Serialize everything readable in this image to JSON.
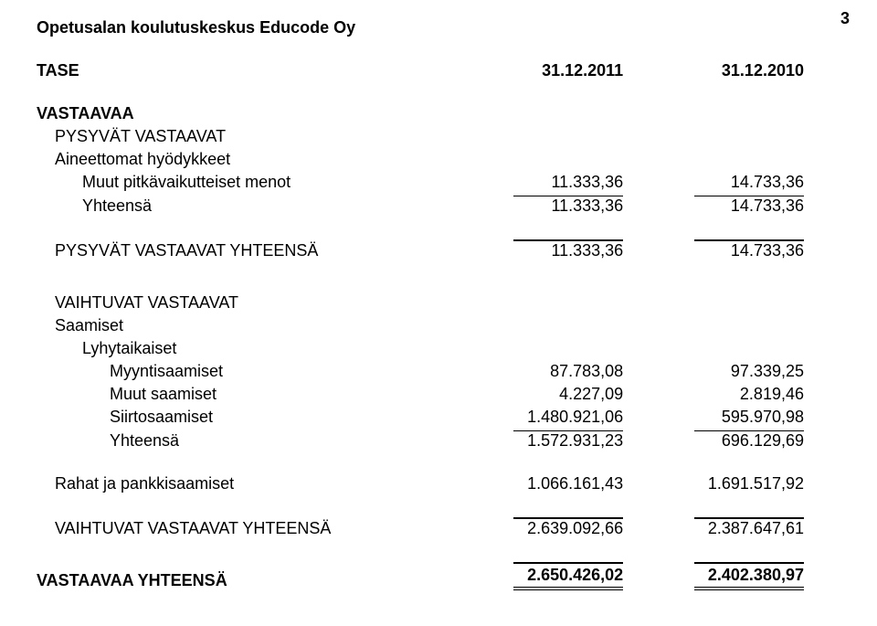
{
  "page_number": "3",
  "org": "Opetusalan koulutuskeskus Educode Oy",
  "heading": "TASE",
  "col1": "31.12.2011",
  "col2": "31.12.2010",
  "s1": {
    "title": "VASTAAVAA",
    "sub1": "PYSYVÄT VASTAAVAT",
    "sub2": "Aineettomat hyödykkeet",
    "row1": {
      "label": "Muut pitkävaikutteiset menot",
      "v1": "11.333,36",
      "v2": "14.733,36"
    },
    "row2": {
      "label": "Yhteensä",
      "v1": "11.333,36",
      "v2": "14.733,36"
    }
  },
  "s2": {
    "label": "PYSYVÄT VASTAAVAT YHTEENSÄ",
    "v1": "11.333,36",
    "v2": "14.733,36"
  },
  "s3": {
    "sub1": "VAIHTUVAT VASTAAVAT",
    "sub2": "Saamiset",
    "sub3": "Lyhytaikaiset",
    "r1": {
      "label": "Myyntisaamiset",
      "v1": "87.783,08",
      "v2": "97.339,25"
    },
    "r2": {
      "label": "Muut saamiset",
      "v1": "4.227,09",
      "v2": "2.819,46"
    },
    "r3": {
      "label": "Siirtosaamiset",
      "v1": "1.480.921,06",
      "v2": "595.970,98"
    },
    "r4": {
      "label": "Yhteensä",
      "v1": "1.572.931,23",
      "v2": "696.129,69"
    }
  },
  "s4": {
    "label": "Rahat ja pankkisaamiset",
    "v1": "1.066.161,43",
    "v2": "1.691.517,92"
  },
  "s5": {
    "label": "VAIHTUVAT VASTAAVAT YHTEENSÄ",
    "v1": "2.639.092,66",
    "v2": "2.387.647,61"
  },
  "s6": {
    "label": "VASTAAVAA YHTEENSÄ",
    "v1": "2.650.426,02",
    "v2": "2.402.380,97"
  }
}
